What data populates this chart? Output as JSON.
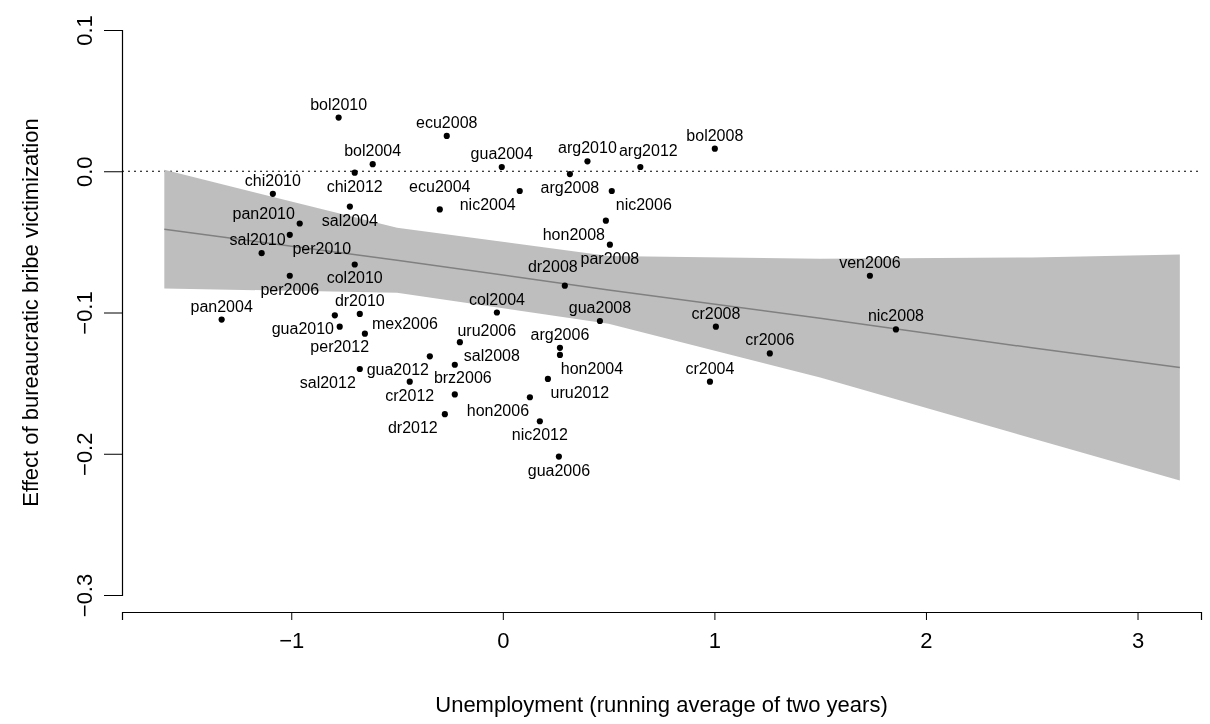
{
  "chart_data": {
    "type": "scatter",
    "xlabel": "Unemployment (running average of two years)",
    "ylabel": "Effect of bureaucratic bribe victimization",
    "xlim": [
      -1.8,
      3.3
    ],
    "ylim": [
      -0.3,
      0.1
    ],
    "xticks": [
      {
        "value": -1,
        "label": "−1"
      },
      0,
      1,
      2,
      3
    ],
    "yticks": [
      {
        "value": -0.3,
        "label": "−0.3"
      },
      {
        "value": -0.2,
        "label": "−0.2"
      },
      {
        "value": -0.1,
        "label": "−0.1"
      },
      {
        "value": 0,
        "label": "0.0"
      },
      {
        "value": 0.1,
        "label": "0.1"
      }
    ],
    "grid": false,
    "ref_lines": [
      {
        "axis": "y",
        "value": 0,
        "line_style": "dotted",
        "color": "#000000"
      }
    ],
    "series": [
      {
        "type": "line",
        "color": "#808080",
        "line_style": "solid",
        "x": [
          -1.6,
          -0.5,
          0.5,
          1.5,
          2.5,
          3.2
        ],
        "values": [
          -0.041,
          -0.063,
          -0.084,
          -0.104,
          -0.125,
          -0.139
        ],
        "lower": [
          -0.083,
          -0.086,
          -0.108,
          -0.146,
          -0.189,
          -0.219
        ],
        "upper": [
          0.001,
          -0.04,
          -0.06,
          -0.062,
          -0.061,
          -0.059
        ]
      },
      {
        "marker": "circle",
        "color": "#000000",
        "x": [
          -0.776,
          -0.265,
          1.002,
          -0.615,
          -0.7,
          -0.005,
          0.4,
          0.65,
          0.317,
          0.515,
          -1.087,
          0.08,
          -0.723,
          -0.298,
          0.487,
          0.506,
          -0.96,
          -1.007,
          -1.14,
          -0.7,
          -1.007,
          0.293,
          -0.028,
          0.459,
          1.007,
          1.735,
          1.858,
          1.262,
          0.979,
          -1.329,
          -0.794,
          -0.676,
          -0.771,
          -0.652,
          -0.203,
          -0.345,
          -0.227,
          0.27,
          0.27,
          -0.676,
          -0.44,
          -0.227,
          0.213,
          0.128,
          -0.274,
          0.175,
          0.265
        ],
        "values": [
          0.038,
          0.025,
          0.016,
          0.005,
          -0.001,
          0.003,
          0.007,
          0.003,
          -0.002,
          -0.014,
          -0.016,
          -0.014,
          -0.025,
          -0.027,
          -0.035,
          -0.052,
          -0.037,
          -0.045,
          -0.058,
          -0.066,
          -0.074,
          -0.081,
          -0.1,
          -0.106,
          -0.11,
          -0.074,
          -0.112,
          -0.129,
          -0.149,
          -0.105,
          -0.102,
          -0.101,
          -0.11,
          -0.115,
          -0.121,
          -0.131,
          -0.137,
          -0.125,
          -0.13,
          -0.14,
          -0.149,
          -0.158,
          -0.147,
          -0.16,
          -0.172,
          -0.177,
          -0.202
        ],
        "value_labels": [
          "bol2010",
          "ecu2008",
          "bol2008",
          "bol2004",
          "chi2012",
          "gua2004",
          "arg2010",
          "arg2012",
          "arg2008",
          "nic2006",
          "chi2010",
          "nic2004",
          "sal2004",
          "ecu2004",
          "hon2008",
          "par2008",
          "pan2010",
          "per2010",
          "sal2010",
          "col2010",
          "per2006",
          "dr2008",
          "col2004",
          "gua2008",
          "cr2008",
          "ven2006",
          "nic2008",
          "cr2006",
          "cr2004",
          "pan2004",
          "gua2010",
          "dr2010",
          "per2012",
          "mex2006",
          "sal2008",
          "gua2012",
          "uru2006",
          "arg2006",
          "hon2004",
          "sal2012",
          "cr2012",
          "brz2006",
          "uru2012",
          "hon2006",
          "dr2012",
          "nic2012",
          "gua2006"
        ]
      }
    ]
  }
}
